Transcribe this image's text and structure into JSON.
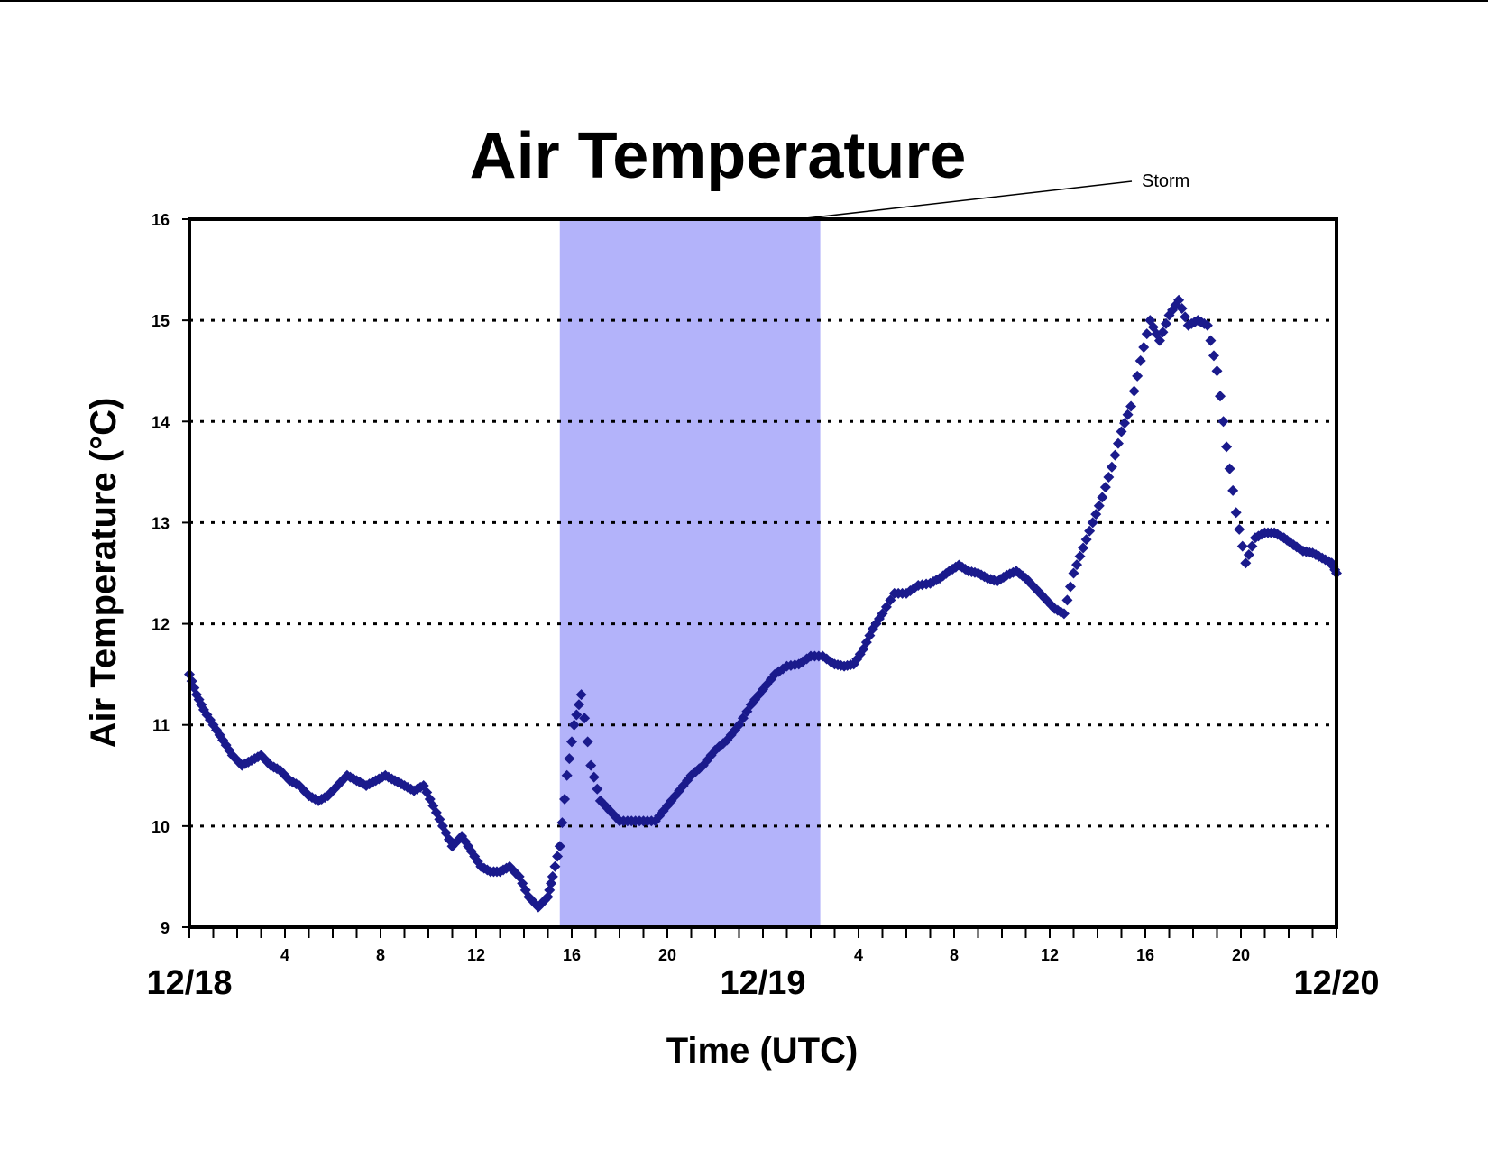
{
  "chart_data": {
    "type": "scatter",
    "title": "Air Temperature",
    "xlabel": "Time (UTC)",
    "ylabel": "Air Temperature (°C)",
    "ylim": [
      9,
      16
    ],
    "yticks": [
      "9",
      "10",
      "11",
      "12",
      "13",
      "14",
      "15",
      "16"
    ],
    "xlim_hours": [
      0,
      48
    ],
    "xtick_labels": [
      {
        "hour": 4,
        "label": "4"
      },
      {
        "hour": 8,
        "label": "8"
      },
      {
        "hour": 12,
        "label": "12"
      },
      {
        "hour": 16,
        "label": "16"
      },
      {
        "hour": 20,
        "label": "20"
      },
      {
        "hour": 28,
        "label": "4"
      },
      {
        "hour": 32,
        "label": "8"
      },
      {
        "hour": 36,
        "label": "12"
      },
      {
        "hour": 40,
        "label": "16"
      },
      {
        "hour": 44,
        "label": "20"
      }
    ],
    "date_labels": [
      {
        "hour": 0,
        "label": "12/18"
      },
      {
        "hour": 24,
        "label": "12/19"
      },
      {
        "hour": 48,
        "label": "12/20"
      }
    ],
    "grid": "horizontal dotted",
    "marker_color": "#1a1a8c",
    "shade_color": "#b3b3fa",
    "annotation": {
      "label": "Storm",
      "shaded_range_hours": [
        15.5,
        26.4
      ]
    },
    "series": [
      {
        "x": [
          0.0,
          0.3,
          0.6,
          1.0,
          1.4,
          1.8,
          2.2,
          2.6,
          3.0,
          3.4,
          3.8,
          4.2,
          4.6,
          5.0,
          5.4,
          5.8,
          6.2,
          6.6,
          7.0,
          7.4,
          7.8,
          8.2,
          8.6,
          9.0,
          9.4,
          9.8,
          10.2,
          10.6,
          11.0,
          11.4,
          11.8,
          12.2,
          12.6,
          13.0,
          13.4,
          13.8,
          14.2,
          14.6,
          15.0,
          15.2,
          15.5,
          15.8,
          16.1,
          16.4,
          16.8,
          17.2,
          17.6,
          18.0,
          18.5,
          19.0,
          19.5,
          20.0,
          20.5,
          21.0,
          21.5,
          22.0,
          22.5,
          23.0,
          23.5,
          24.0,
          24.5,
          25.0,
          25.5,
          26.0,
          26.5,
          27.0,
          27.4,
          27.8,
          28.2,
          28.6,
          29.0,
          29.5,
          30.0,
          30.5,
          31.0,
          31.4,
          31.8,
          32.2,
          32.6,
          33.0,
          33.4,
          33.8,
          34.2,
          34.6,
          35.0,
          35.4,
          35.8,
          36.2,
          36.6,
          37.0,
          37.4,
          37.8,
          38.2,
          38.6,
          39.0,
          39.4,
          39.8,
          40.2,
          40.6,
          41.0,
          41.4,
          41.8,
          42.2,
          42.6,
          43.0,
          43.4,
          43.8,
          44.2,
          44.6,
          45.0,
          45.4,
          45.8,
          46.2,
          46.6,
          47.0,
          47.4,
          47.8,
          48.0
        ],
        "y": [
          11.5,
          11.3,
          11.15,
          11.0,
          10.85,
          10.7,
          10.6,
          10.65,
          10.7,
          10.6,
          10.55,
          10.45,
          10.4,
          10.3,
          10.25,
          10.3,
          10.4,
          10.5,
          10.45,
          10.4,
          10.45,
          10.5,
          10.45,
          10.4,
          10.35,
          10.4,
          10.2,
          10.0,
          9.8,
          9.9,
          9.75,
          9.6,
          9.55,
          9.55,
          9.6,
          9.5,
          9.3,
          9.2,
          9.3,
          9.5,
          9.8,
          10.5,
          11.0,
          11.3,
          10.6,
          10.25,
          10.15,
          10.05,
          10.05,
          10.05,
          10.05,
          10.2,
          10.35,
          10.5,
          10.6,
          10.75,
          10.85,
          11.0,
          11.2,
          11.35,
          11.5,
          11.58,
          11.6,
          11.68,
          11.68,
          11.6,
          11.58,
          11.6,
          11.75,
          11.95,
          12.1,
          12.3,
          12.3,
          12.38,
          12.4,
          12.45,
          12.52,
          12.58,
          12.52,
          12.5,
          12.45,
          12.42,
          12.48,
          12.52,
          12.45,
          12.35,
          12.25,
          12.15,
          12.1,
          12.5,
          12.75,
          13.0,
          13.25,
          13.55,
          13.9,
          14.15,
          14.6,
          15.0,
          14.8,
          15.05,
          15.2,
          14.95,
          15.0,
          14.95,
          14.5,
          13.75,
          13.1,
          12.6,
          12.85,
          12.9,
          12.9,
          12.85,
          12.78,
          12.72,
          12.7,
          12.65,
          12.6,
          12.5
        ]
      }
    ]
  }
}
